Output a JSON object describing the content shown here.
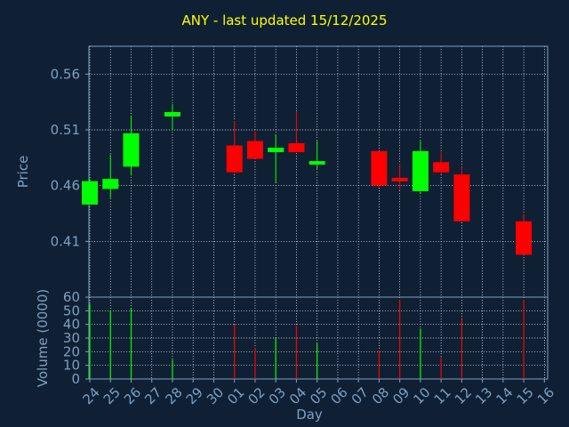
{
  "chart_data": {
    "type": "candlestick",
    "title": "ANY - last updated 15/12/2025",
    "xlabel": "Day",
    "price_panel": {
      "ylabel": "Price",
      "ylim": [
        0.36,
        0.585
      ],
      "yticks": [
        0.41,
        0.46,
        0.51,
        0.56
      ],
      "ytick_labels": [
        "0.41",
        "0.46",
        "0.51",
        "0.56"
      ]
    },
    "volume_panel": {
      "ylabel": "Volume (0000)",
      "ylim": [
        0,
        60
      ],
      "yticks": [
        0,
        10,
        20,
        30,
        40,
        50,
        60
      ],
      "ytick_labels": [
        "0",
        "10",
        "20",
        "30",
        "40",
        "50",
        "60"
      ]
    },
    "x_tick_labels": [
      "24",
      "25",
      "26",
      "27",
      "28",
      "29",
      "30",
      "01",
      "02",
      "03",
      "04",
      "05",
      "06",
      "07",
      "08",
      "09",
      "10",
      "11",
      "12",
      "13",
      "14",
      "15",
      "16"
    ],
    "colors": {
      "up": "#00ff00",
      "down": "#ff0000",
      "background": "#0f2034",
      "grid": "#ffffff",
      "axis_text": "#7f9fbf",
      "title": "#ffff00"
    },
    "candles": [
      {
        "day": "24",
        "open": 0.443,
        "high": 0.466,
        "low": 0.443,
        "close": 0.464,
        "volume": 55
      },
      {
        "day": "25",
        "open": 0.457,
        "high": 0.488,
        "low": 0.449,
        "close": 0.466,
        "volume": 50
      },
      {
        "day": "26",
        "open": 0.477,
        "high": 0.523,
        "low": 0.469,
        "close": 0.507,
        "volume": 52
      },
      {
        "day": "28",
        "open": 0.522,
        "high": 0.533,
        "low": 0.51,
        "close": 0.526,
        "volume": 14
      },
      {
        "day": "01",
        "open": 0.496,
        "high": 0.518,
        "low": 0.471,
        "close": 0.472,
        "volume": 40
      },
      {
        "day": "02",
        "open": 0.5,
        "high": 0.509,
        "low": 0.484,
        "close": 0.484,
        "volume": 23
      },
      {
        "day": "03",
        "open": 0.49,
        "high": 0.506,
        "low": 0.463,
        "close": 0.494,
        "volume": 30
      },
      {
        "day": "04",
        "open": 0.498,
        "high": 0.526,
        "low": 0.49,
        "close": 0.49,
        "volume": 39
      },
      {
        "day": "05",
        "open": 0.479,
        "high": 0.5,
        "low": 0.475,
        "close": 0.482,
        "volume": 26
      },
      {
        "day": "08",
        "open": 0.491,
        "high": 0.491,
        "low": 0.459,
        "close": 0.46,
        "volume": 21
      },
      {
        "day": "09",
        "open": 0.467,
        "high": 0.48,
        "low": 0.456,
        "close": 0.464,
        "volume": 58
      },
      {
        "day": "10",
        "open": 0.455,
        "high": 0.5,
        "low": 0.453,
        "close": 0.491,
        "volume": 37
      },
      {
        "day": "11",
        "open": 0.481,
        "high": 0.49,
        "low": 0.47,
        "close": 0.472,
        "volume": 16
      },
      {
        "day": "12",
        "open": 0.47,
        "high": 0.477,
        "low": 0.428,
        "close": 0.428,
        "volume": 44
      },
      {
        "day": "15",
        "open": 0.428,
        "high": 0.434,
        "low": 0.398,
        "close": 0.398,
        "volume": 58
      }
    ]
  }
}
